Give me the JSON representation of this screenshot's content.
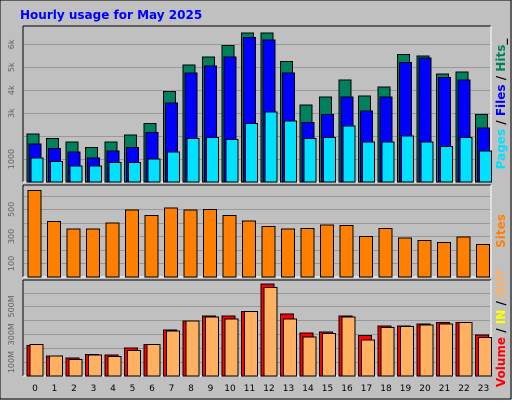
{
  "title": "Hourly usage for May 2025",
  "colors": {
    "background": "#C0C0C0",
    "title": "#0000FF",
    "hits": "#00805C",
    "files": "#0000FF",
    "pages": "#00E0FF",
    "sites": "#FF8000",
    "visits": "#FFFF00",
    "kbin": "#FF0000",
    "kbout": "#FFB060",
    "volume_label": "#FF0000"
  },
  "chart_data": [
    {
      "type": "bar",
      "name": "hits-files-pages",
      "categories": [
        "0",
        "1",
        "2",
        "3",
        "4",
        "5",
        "6",
        "7",
        "8",
        "9",
        "10",
        "11",
        "12",
        "13",
        "14",
        "15",
        "16",
        "17",
        "18",
        "19",
        "20",
        "21",
        "22",
        "23"
      ],
      "series": [
        {
          "name": "Hits",
          "values": [
            2100,
            1900,
            1750,
            1500,
            1750,
            2050,
            2550,
            3950,
            5100,
            5450,
            5950,
            6500,
            6500,
            5250,
            3350,
            3700,
            4450,
            3750,
            4150,
            5550,
            5500,
            4700,
            4800,
            2950
          ]
        },
        {
          "name": "Files",
          "values": [
            1650,
            1450,
            1300,
            1050,
            1350,
            1500,
            2150,
            3450,
            4750,
            5050,
            5450,
            6300,
            6200,
            4750,
            2600,
            2950,
            3700,
            3100,
            3700,
            5200,
            5400,
            4550,
            4450,
            2350
          ]
        },
        {
          "name": "Pages",
          "values": [
            1050,
            900,
            700,
            700,
            850,
            850,
            1000,
            1300,
            1900,
            1950,
            1850,
            2550,
            3050,
            2650,
            1900,
            1950,
            2450,
            1750,
            1750,
            2000,
            1750,
            1550,
            1950,
            1350
          ]
        }
      ],
      "y_tick_labels": [
        "1000",
        "3k",
        "4k",
        "5k",
        "6k"
      ],
      "right_label": {
        "pages": "Pages",
        "sep1": " / ",
        "files": "Files",
        "sep2": " / ",
        "hits": "Hits",
        "trail": "_"
      }
    },
    {
      "type": "bar",
      "name": "sites",
      "categories": [
        "0",
        "1",
        "2",
        "3",
        "4",
        "5",
        "6",
        "7",
        "8",
        "9",
        "10",
        "11",
        "12",
        "13",
        "14",
        "15",
        "16",
        "17",
        "18",
        "19",
        "20",
        "21",
        "22",
        "23"
      ],
      "series": [
        {
          "name": "Sites",
          "values": [
            640,
            410,
            355,
            355,
            400,
            495,
            455,
            510,
            495,
            500,
            455,
            415,
            375,
            355,
            360,
            385,
            380,
            300,
            360,
            290,
            270,
            255,
            295,
            240
          ]
        }
      ],
      "y_tick_labels": [
        "100",
        "300",
        "500"
      ],
      "right_label": {
        "sites": "Sites"
      }
    },
    {
      "type": "bar",
      "name": "volume",
      "categories": [
        "0",
        "1",
        "2",
        "3",
        "4",
        "5",
        "6",
        "7",
        "8",
        "9",
        "10",
        "11",
        "12",
        "13",
        "14",
        "15",
        "16",
        "17",
        "18",
        "19",
        "20",
        "21",
        "22",
        "23"
      ],
      "series": [
        {
          "name": "KBytes In",
          "values": [
            220,
            145,
            130,
            155,
            150,
            200,
            225,
            330,
            395,
            430,
            430,
            465,
            660,
            445,
            310,
            315,
            430,
            290,
            360,
            360,
            375,
            385,
            385,
            295
          ]
        },
        {
          "name": "KBytes Out",
          "values": [
            225,
            145,
            120,
            150,
            140,
            185,
            225,
            325,
            395,
            425,
            410,
            465,
            635,
            410,
            280,
            305,
            425,
            260,
            350,
            355,
            365,
            375,
            385,
            275
          ]
        }
      ],
      "y_tick_labels": [
        "100M",
        "300M",
        "500M"
      ],
      "right_label": {
        "volume": "Volume",
        "sep1": " / ",
        "in": "IN",
        "sep2": " / ",
        "out": "OUT"
      }
    }
  ]
}
